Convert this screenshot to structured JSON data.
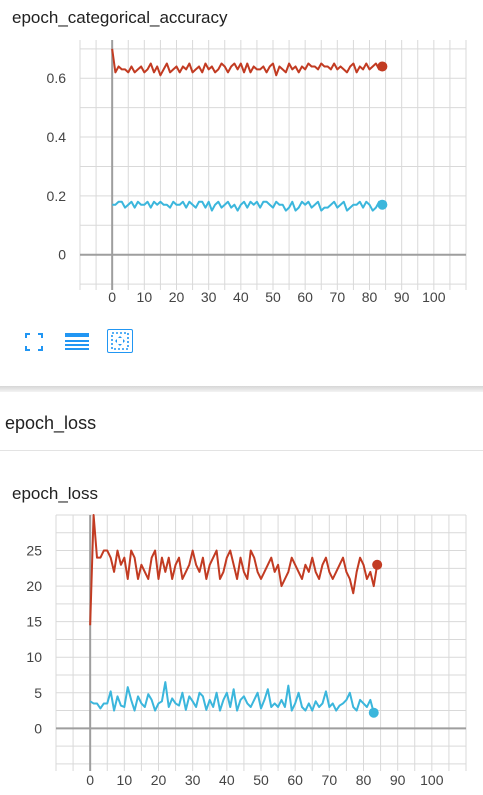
{
  "section": {
    "title": "epoch_loss"
  },
  "colors": {
    "train": "#c23b22",
    "validation": "#3bb6dc",
    "grid": "#d9d9d9",
    "axis": "#9e9e9e",
    "toolbar": "#2196f3"
  },
  "toolbar": {
    "icons": [
      "fullscreen-icon",
      "list-view-icon",
      "fit-domain-icon"
    ]
  },
  "chart_data": [
    {
      "type": "line",
      "title": "epoch_categorical_accuracy",
      "xlabel": "",
      "ylabel": "",
      "x_ticks": [
        0,
        10,
        20,
        30,
        40,
        50,
        60,
        70,
        80,
        90,
        100
      ],
      "y_ticks": [
        0,
        0.2,
        0.4,
        0.6
      ],
      "xlim": [
        -10,
        110
      ],
      "ylim": [
        -0.12,
        0.73
      ],
      "grid": true,
      "series": [
        {
          "color": "#c23b22",
          "values": [
            0.7,
            0.62,
            0.64,
            0.63,
            0.63,
            0.62,
            0.64,
            0.62,
            0.63,
            0.64,
            0.62,
            0.63,
            0.65,
            0.62,
            0.64,
            0.61,
            0.63,
            0.65,
            0.62,
            0.63,
            0.64,
            0.62,
            0.64,
            0.63,
            0.65,
            0.62,
            0.63,
            0.64,
            0.62,
            0.65,
            0.63,
            0.64,
            0.62,
            0.63,
            0.65,
            0.64,
            0.62,
            0.64,
            0.65,
            0.63,
            0.65,
            0.62,
            0.65,
            0.62,
            0.64,
            0.63,
            0.63,
            0.64,
            0.62,
            0.64,
            0.65,
            0.61,
            0.64,
            0.63,
            0.62,
            0.65,
            0.63,
            0.64,
            0.62,
            0.64,
            0.63,
            0.65,
            0.64,
            0.64,
            0.63,
            0.65,
            0.64,
            0.64,
            0.63,
            0.65,
            0.63,
            0.64,
            0.63,
            0.62,
            0.64,
            0.65,
            0.62,
            0.64,
            0.63,
            0.65,
            0.63,
            0.64,
            0.65,
            0.63,
            0.64
          ]
        },
        {
          "color": "#3bb6dc",
          "values": [
            0.17,
            0.17,
            0.18,
            0.18,
            0.16,
            0.17,
            0.18,
            0.16,
            0.18,
            0.17,
            0.17,
            0.18,
            0.16,
            0.18,
            0.17,
            0.18,
            0.17,
            0.17,
            0.16,
            0.18,
            0.17,
            0.17,
            0.18,
            0.16,
            0.18,
            0.17,
            0.16,
            0.18,
            0.18,
            0.16,
            0.18,
            0.15,
            0.17,
            0.18,
            0.16,
            0.17,
            0.18,
            0.16,
            0.17,
            0.15,
            0.17,
            0.18,
            0.16,
            0.18,
            0.17,
            0.18,
            0.16,
            0.18,
            0.18,
            0.17,
            0.16,
            0.18,
            0.17,
            0.17,
            0.15,
            0.16,
            0.18,
            0.15,
            0.16,
            0.18,
            0.17,
            0.18,
            0.16,
            0.17,
            0.18,
            0.15,
            0.16,
            0.16,
            0.17,
            0.18,
            0.16,
            0.17,
            0.18,
            0.15,
            0.16,
            0.17,
            0.17,
            0.18,
            0.16,
            0.18,
            0.17,
            0.15,
            0.16,
            0.18,
            0.17
          ]
        }
      ]
    },
    {
      "type": "line",
      "title": "epoch_loss",
      "xlabel": "",
      "ylabel": "",
      "x_ticks": [
        0,
        10,
        20,
        30,
        40,
        50,
        60,
        70,
        80,
        90,
        100
      ],
      "y_ticks": [
        0,
        5,
        10,
        15,
        20,
        25
      ],
      "xlim": [
        -10,
        110
      ],
      "ylim": [
        -6,
        30
      ],
      "grid": true,
      "series": [
        {
          "color": "#c23b22",
          "values": [
            14.5,
            30,
            24,
            24,
            25,
            25,
            24,
            22,
            25,
            23,
            24,
            21,
            25,
            24,
            21,
            23,
            22,
            21,
            24,
            25,
            21,
            24,
            22,
            24,
            21,
            23,
            24,
            21,
            22,
            23,
            25,
            23,
            22,
            24,
            21,
            23,
            24,
            25,
            21,
            22,
            24,
            25,
            23,
            21,
            24,
            22,
            21,
            25,
            24,
            22,
            21,
            22,
            23,
            24,
            22,
            23,
            20,
            21,
            22,
            24,
            23,
            22,
            21,
            23,
            22,
            24,
            22,
            21,
            23,
            24,
            22,
            21,
            22,
            23,
            24,
            22,
            21,
            19,
            22,
            24,
            23,
            21,
            22,
            20,
            23
          ]
        },
        {
          "color": "#3bb6dc",
          "values": [
            3.8,
            3.5,
            3.5,
            2.8,
            3.5,
            3.5,
            5.2,
            2.5,
            4.5,
            3.2,
            3,
            5.8,
            4,
            2.5,
            4.5,
            3.5,
            3,
            4.8,
            4,
            2.5,
            3.5,
            3.8,
            6.5,
            3,
            4.2,
            3.5,
            3.2,
            5,
            2.6,
            4.5,
            3.8,
            3,
            5,
            4.5,
            2.6,
            4,
            3,
            5,
            2.5,
            4,
            5,
            3,
            5.5,
            2.5,
            4,
            4.5,
            3.5,
            3,
            4,
            5,
            2.8,
            4,
            5.5,
            3,
            3.5,
            3,
            4,
            3,
            6,
            2.5,
            3.5,
            5,
            3,
            2.5,
            3.5,
            2.5,
            3.8,
            3,
            3.5,
            5.2,
            3,
            3.5,
            2.5,
            3.2,
            3.5,
            4,
            5,
            3,
            2.5,
            4,
            3.5,
            3,
            4,
            2.2
          ]
        }
      ]
    }
  ]
}
